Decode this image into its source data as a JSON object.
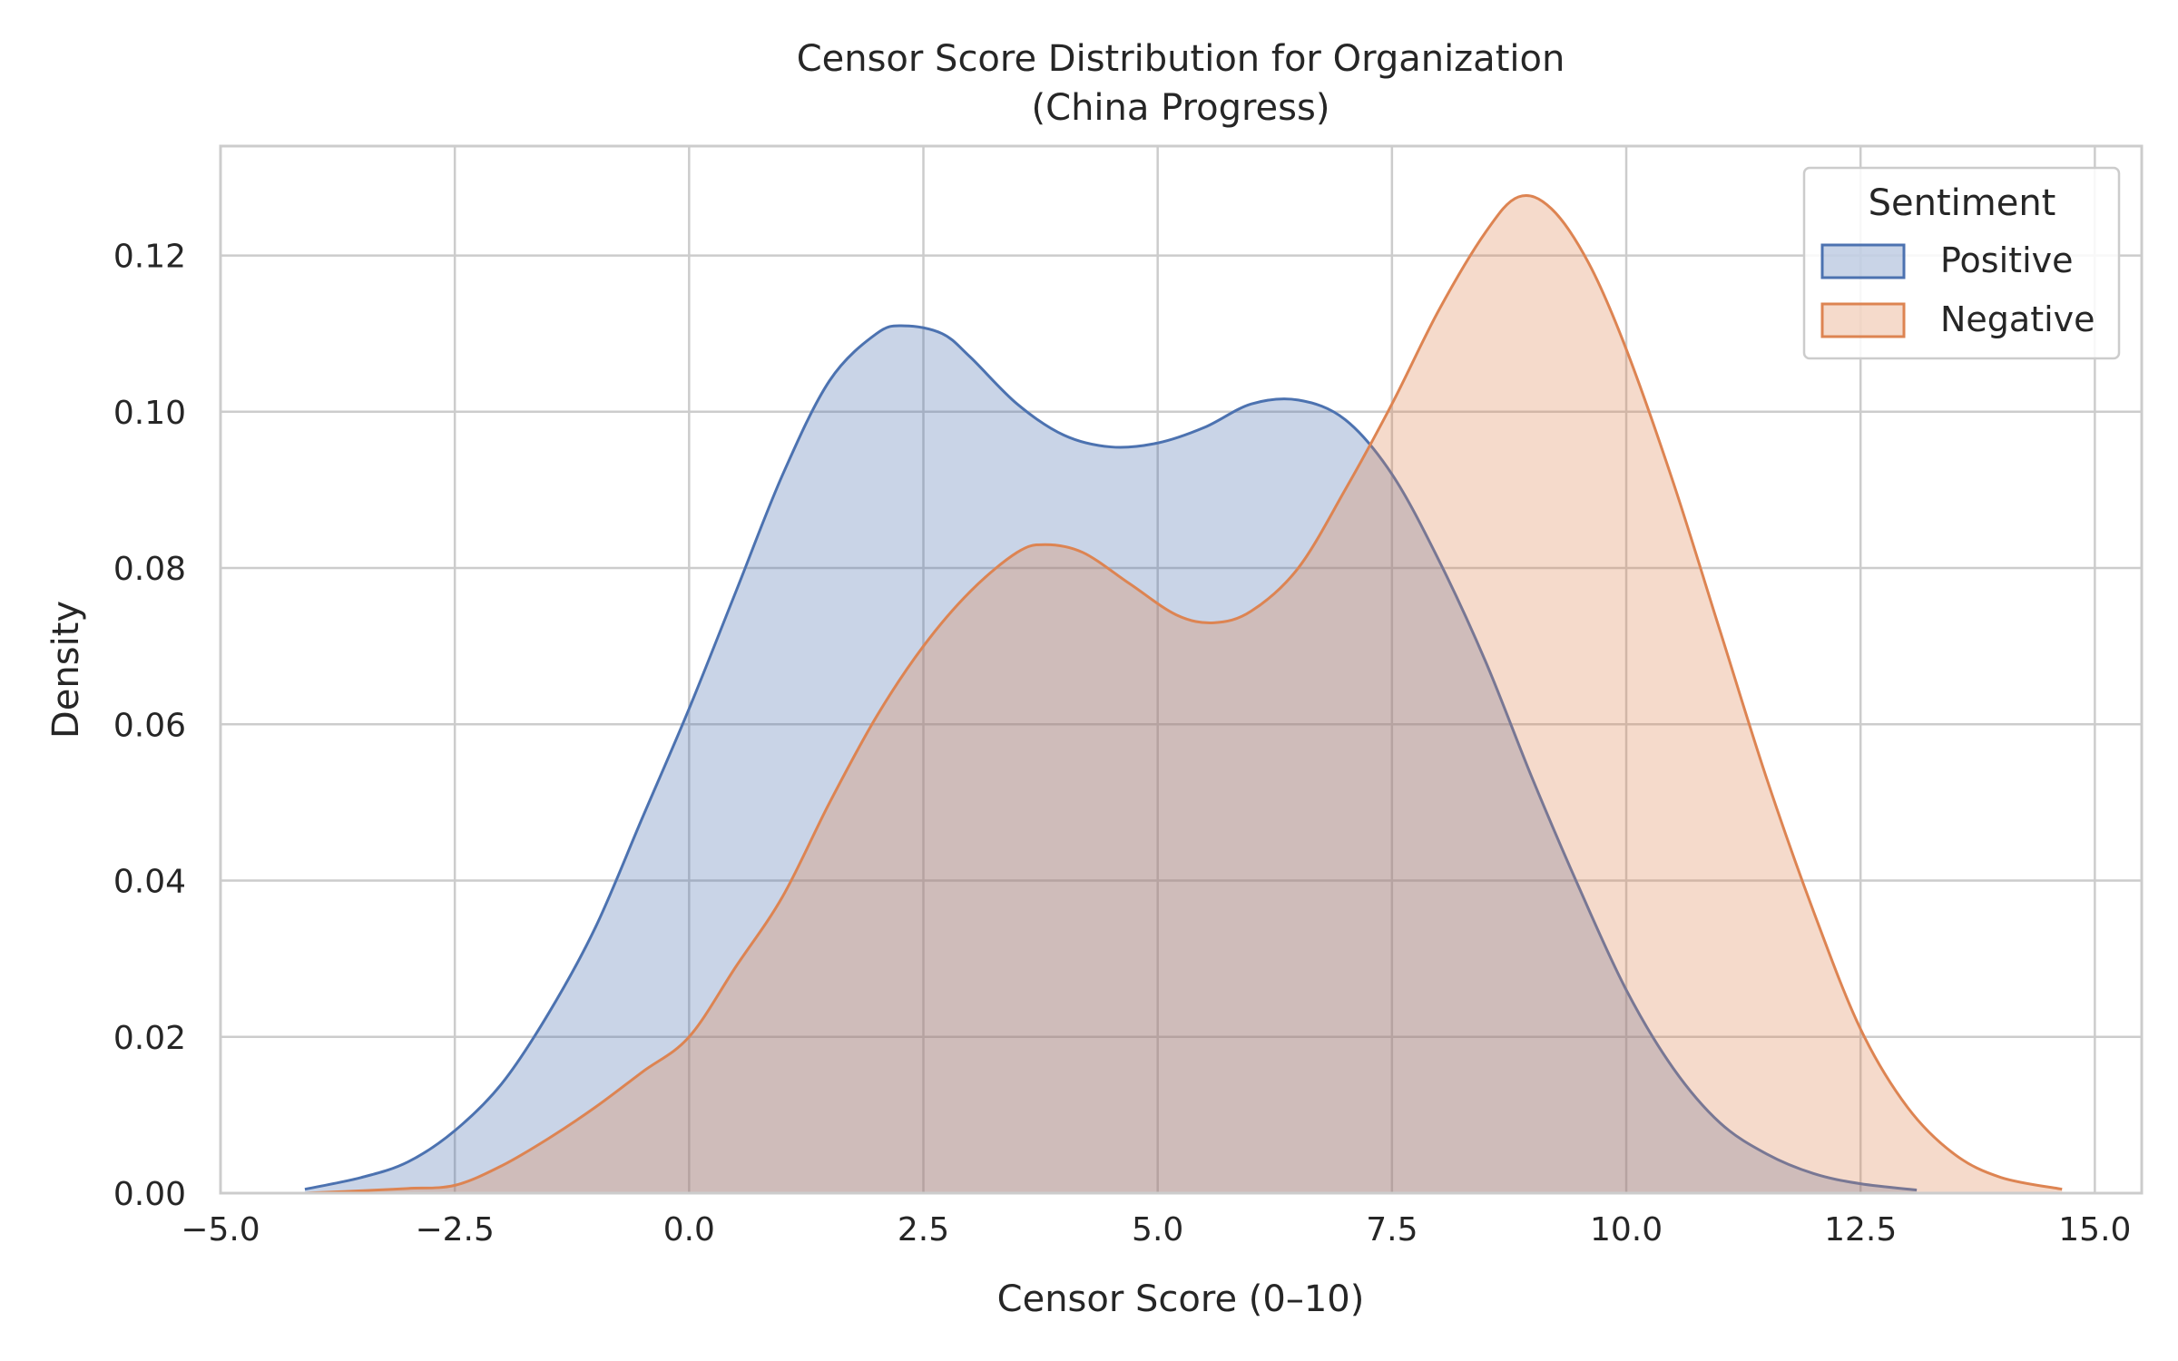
{
  "chart_data": {
    "type": "area",
    "title": "Censor Score Distribution for Organization",
    "subtitle": "(China Progress)",
    "xlabel": "Censor Score (0–10)",
    "ylabel": "Density",
    "xlim": [
      -5.0,
      15.5
    ],
    "ylim": [
      0.0,
      0.134
    ],
    "x_ticks": [
      -5.0,
      -2.5,
      0.0,
      2.5,
      5.0,
      7.5,
      10.0,
      12.5,
      15.0
    ],
    "x_tick_labels": [
      "−5.0",
      "−2.5",
      "0.0",
      "2.5",
      "5.0",
      "7.5",
      "10.0",
      "12.5",
      "15.0"
    ],
    "y_ticks": [
      0.0,
      0.02,
      0.04,
      0.06,
      0.08,
      0.1,
      0.12
    ],
    "y_tick_labels": [
      "0.00",
      "0.02",
      "0.04",
      "0.06",
      "0.08",
      "0.10",
      "0.12"
    ],
    "grid": true,
    "legend": {
      "title": "Sentiment",
      "placement": "top-right"
    },
    "series": [
      {
        "name": "Positive",
        "color": "#4c72b0",
        "fill_opacity": 0.3,
        "points": [
          [
            -4.1,
            0.0005
          ],
          [
            -3.5,
            0.002
          ],
          [
            -3.0,
            0.004
          ],
          [
            -2.5,
            0.008
          ],
          [
            -2.0,
            0.014
          ],
          [
            -1.5,
            0.023
          ],
          [
            -1.0,
            0.034
          ],
          [
            -0.5,
            0.048
          ],
          [
            0.0,
            0.062
          ],
          [
            0.5,
            0.077
          ],
          [
            1.0,
            0.092
          ],
          [
            1.5,
            0.104
          ],
          [
            2.0,
            0.11
          ],
          [
            2.3,
            0.111
          ],
          [
            2.7,
            0.11
          ],
          [
            3.0,
            0.107
          ],
          [
            3.5,
            0.101
          ],
          [
            4.0,
            0.097
          ],
          [
            4.5,
            0.0955
          ],
          [
            5.0,
            0.096
          ],
          [
            5.5,
            0.098
          ],
          [
            6.0,
            0.101
          ],
          [
            6.5,
            0.1015
          ],
          [
            7.0,
            0.099
          ],
          [
            7.5,
            0.092
          ],
          [
            8.0,
            0.081
          ],
          [
            8.5,
            0.068
          ],
          [
            9.0,
            0.053
          ],
          [
            9.5,
            0.039
          ],
          [
            10.0,
            0.026
          ],
          [
            10.5,
            0.016
          ],
          [
            11.0,
            0.009
          ],
          [
            11.5,
            0.005
          ],
          [
            12.0,
            0.0025
          ],
          [
            12.5,
            0.0012
          ],
          [
            13.1,
            0.0004
          ]
        ]
      },
      {
        "name": "Negative",
        "color": "#dd8452",
        "fill_opacity": 0.3,
        "points": [
          [
            -4.1,
            0.0
          ],
          [
            -3.5,
            0.0003
          ],
          [
            -3.0,
            0.0006
          ],
          [
            -2.5,
            0.001
          ],
          [
            -2.0,
            0.0035
          ],
          [
            -1.5,
            0.007
          ],
          [
            -1.0,
            0.011
          ],
          [
            -0.5,
            0.0155
          ],
          [
            0.0,
            0.02
          ],
          [
            0.5,
            0.029
          ],
          [
            1.0,
            0.038
          ],
          [
            1.5,
            0.05
          ],
          [
            2.0,
            0.061
          ],
          [
            2.5,
            0.07
          ],
          [
            3.0,
            0.077
          ],
          [
            3.5,
            0.082
          ],
          [
            3.8,
            0.083
          ],
          [
            4.2,
            0.082
          ],
          [
            4.7,
            0.078
          ],
          [
            5.2,
            0.074
          ],
          [
            5.6,
            0.073
          ],
          [
            6.0,
            0.0745
          ],
          [
            6.5,
            0.08
          ],
          [
            7.0,
            0.09
          ],
          [
            7.5,
            0.101
          ],
          [
            8.0,
            0.113
          ],
          [
            8.5,
            0.123
          ],
          [
            8.85,
            0.1275
          ],
          [
            9.2,
            0.126
          ],
          [
            9.6,
            0.119
          ],
          [
            10.0,
            0.108
          ],
          [
            10.5,
            0.091
          ],
          [
            11.0,
            0.072
          ],
          [
            11.5,
            0.053
          ],
          [
            12.0,
            0.036
          ],
          [
            12.5,
            0.021
          ],
          [
            13.0,
            0.011
          ],
          [
            13.5,
            0.005
          ],
          [
            14.0,
            0.002
          ],
          [
            14.65,
            0.0005
          ]
        ]
      }
    ]
  }
}
